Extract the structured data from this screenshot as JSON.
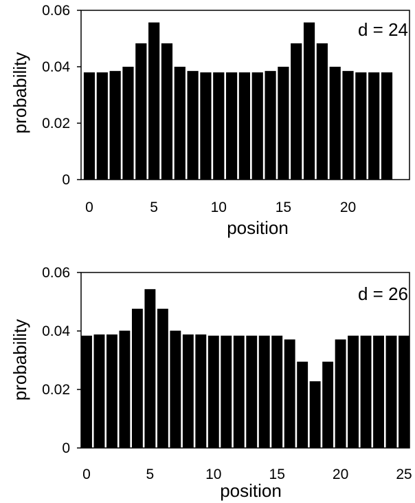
{
  "chart_data": [
    {
      "type": "bar",
      "annotation": "d = 24",
      "xlabel": "position",
      "ylabel": "probability",
      "ylim": [
        0,
        0.06
      ],
      "yticks": [
        0,
        0.02,
        0.04,
        0.06
      ],
      "ytick_labels": [
        "0",
        "0.02",
        "0.04",
        "0.06"
      ],
      "xticks": [
        0,
        5,
        10,
        15,
        20
      ],
      "xtick_labels": [
        "0",
        "5",
        "10",
        "15",
        "20"
      ],
      "x": [
        0,
        1,
        2,
        3,
        4,
        5,
        6,
        7,
        8,
        9,
        10,
        11,
        12,
        13,
        14,
        15,
        16,
        17,
        18,
        19,
        20,
        21,
        22,
        23
      ],
      "values": [
        0.038,
        0.038,
        0.0385,
        0.04,
        0.0483,
        0.0557,
        0.0483,
        0.04,
        0.0385,
        0.038,
        0.038,
        0.038,
        0.038,
        0.038,
        0.0385,
        0.04,
        0.0483,
        0.0557,
        0.0483,
        0.04,
        0.0385,
        0.038,
        0.038,
        0.038
      ],
      "bar_color": "#000000",
      "grid": false
    },
    {
      "type": "bar",
      "annotation": "d = 26",
      "xlabel": "position",
      "ylabel": "probability",
      "ylim": [
        0,
        0.06
      ],
      "yticks": [
        0,
        0.02,
        0.04,
        0.06
      ],
      "ytick_labels": [
        "0",
        "0.02",
        "0.04",
        "0.06"
      ],
      "xticks": [
        0,
        5,
        10,
        15,
        20,
        25
      ],
      "xtick_labels": [
        "0",
        "5",
        "10",
        "15",
        "20",
        "25"
      ],
      "x": [
        0,
        1,
        2,
        3,
        4,
        5,
        6,
        7,
        8,
        9,
        10,
        11,
        12,
        13,
        14,
        15,
        16,
        17,
        18,
        19,
        20,
        21,
        22,
        23,
        24,
        25
      ],
      "values": [
        0.0384,
        0.0388,
        0.0388,
        0.0401,
        0.0476,
        0.0543,
        0.0476,
        0.0401,
        0.0388,
        0.0388,
        0.0384,
        0.0384,
        0.0384,
        0.0384,
        0.0384,
        0.0384,
        0.0371,
        0.0295,
        0.0228,
        0.0295,
        0.0371,
        0.0384,
        0.0384,
        0.0384,
        0.0384,
        0.0384
      ],
      "bar_color": "#000000",
      "grid": false
    }
  ]
}
